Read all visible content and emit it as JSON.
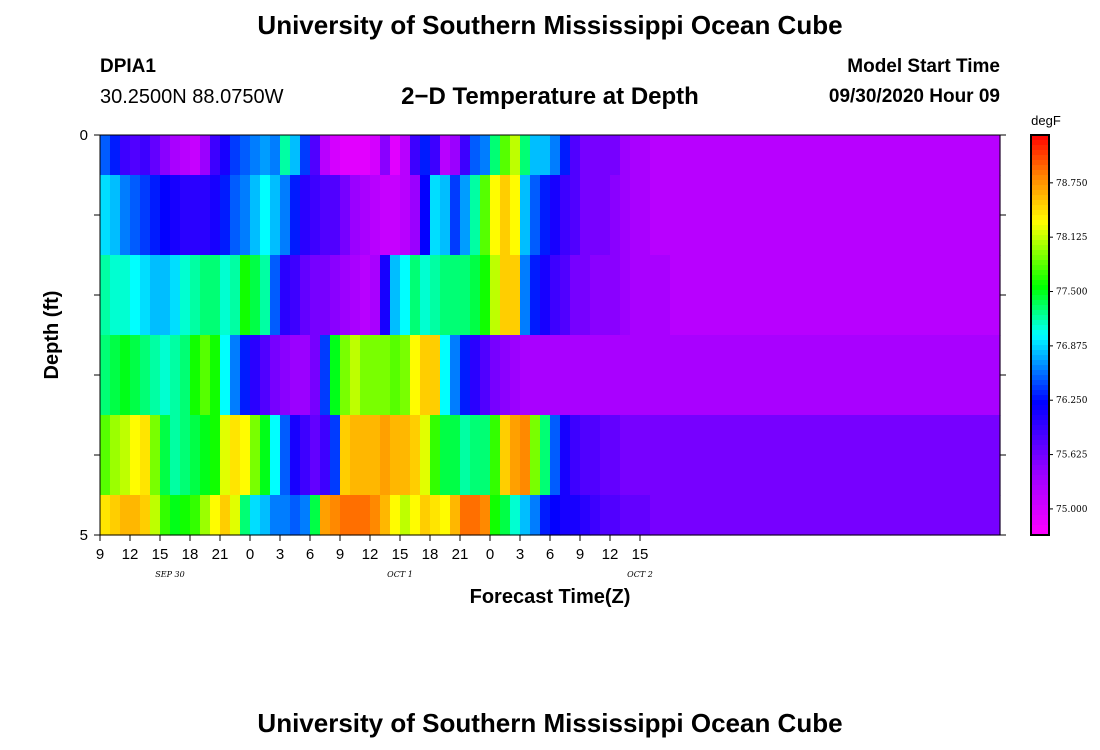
{
  "header": {
    "title": "University of Southern Mississippi Ocean Cube",
    "station_id": "DPIA1",
    "station_coords": "30.2500N 88.0750W",
    "plot_title": "2−D Temperature at Depth",
    "model_start_label": "Model Start Time",
    "model_start_value": "09/30/2020 Hour 09"
  },
  "footer": {
    "title": "University of Southern Mississippi Ocean Cube"
  },
  "chart_data": {
    "type": "heatmap",
    "xlabel": "Forecast Time(Z)",
    "ylabel": "Depth (ft)",
    "x_start_hour": 9,
    "x_step_hours": 1,
    "x_tick_labels": [
      "9",
      "12",
      "15",
      "18",
      "21",
      "0",
      "3",
      "6",
      "9",
      "12",
      "15",
      "18",
      "21",
      "0",
      "3",
      "6",
      "9",
      "12",
      "15"
    ],
    "date_labels": [
      {
        "label": "SEP 30",
        "hour": 16
      },
      {
        "label": "OCT 1",
        "hour": 39
      },
      {
        "label": "OCT 2",
        "hour": 63
      }
    ],
    "y_tick_labels": [
      "0",
      "5"
    ],
    "ylim": [
      0,
      5
    ],
    "colorbar": {
      "unit": "degF",
      "min": 74.7,
      "max": 79.3,
      "ticks": [
        "75.000",
        "75.625",
        "76.250",
        "76.875",
        "77.500",
        "78.125",
        "78.750"
      ]
    },
    "layers": [
      {
        "depth": "0.0–0.5",
        "values": [
          76.5,
          76.3,
          75.9,
          75.8,
          75.9,
          75.7,
          75.5,
          75.3,
          75.2,
          75.1,
          75.4,
          75.9,
          76.1,
          76.4,
          76.5,
          76.6,
          76.7,
          76.6,
          77.2,
          76.8,
          76.4,
          75.8,
          75.2,
          75.0,
          74.9,
          74.9,
          74.9,
          75.0,
          75.5,
          74.9,
          75.2,
          75.9,
          76.3,
          75.9,
          75.2,
          75.4,
          75.9,
          76.5,
          76.6,
          77.3,
          77.8,
          78.1,
          77.3,
          76.8,
          76.8,
          76.6,
          76.3,
          75.8,
          75.6,
          75.6,
          75.6,
          75.6,
          75.4,
          75.3,
          75.3,
          75.2,
          75.2,
          75.2,
          75.2,
          75.2,
          75.2,
          75.2,
          75.2,
          75.2,
          75.2,
          75.2,
          75.2,
          75.2,
          75.2,
          75.2,
          75.2,
          75.2,
          75.2,
          75.2,
          75.2,
          75.2,
          75.2,
          75.2,
          75.2,
          75.2,
          75.2,
          75.2,
          75.2,
          75.2,
          75.2,
          75.2,
          75.2,
          75.2,
          75.2,
          75.2
        ]
      },
      {
        "depth": "0.5–1.5",
        "values": [
          76.9,
          76.8,
          76.6,
          76.5,
          76.4,
          76.3,
          76.2,
          76.1,
          76.0,
          76.0,
          76.0,
          76.1,
          76.3,
          76.5,
          76.6,
          76.8,
          77.0,
          76.8,
          76.6,
          76.3,
          76.0,
          75.9,
          75.8,
          75.8,
          75.6,
          75.4,
          75.3,
          75.2,
          75.1,
          75.1,
          75.2,
          75.4,
          76.2,
          76.9,
          76.8,
          76.4,
          76.7,
          77.2,
          77.8,
          78.3,
          78.5,
          78.3,
          76.8,
          76.5,
          76.3,
          76.1,
          75.9,
          75.8,
          75.6,
          75.6,
          75.6,
          75.5,
          75.4,
          75.3,
          75.3,
          75.2,
          75.2,
          75.2,
          75.2,
          75.2,
          75.2,
          75.2,
          75.2,
          75.2,
          75.2,
          75.2,
          75.2,
          75.2,
          75.2,
          75.2,
          75.2,
          75.2,
          75.2,
          75.2,
          75.2,
          75.2,
          75.2,
          75.2,
          75.2,
          75.2,
          75.2,
          75.2,
          75.2,
          75.2,
          75.2,
          75.2,
          75.2,
          75.2,
          75.2,
          75.2
        ]
      },
      {
        "depth": "1.5–2.5",
        "values": [
          77.2,
          77.1,
          77.1,
          77.0,
          76.9,
          76.8,
          76.8,
          76.9,
          77.1,
          77.2,
          77.3,
          77.3,
          77.1,
          77.2,
          77.6,
          77.4,
          77.2,
          76.5,
          76.0,
          75.9,
          75.7,
          75.6,
          75.6,
          75.5,
          75.4,
          75.3,
          75.2,
          75.3,
          76.1,
          76.8,
          77.0,
          77.3,
          77.1,
          77.2,
          77.3,
          77.3,
          77.3,
          77.4,
          77.6,
          78.1,
          78.5,
          78.5,
          76.6,
          76.3,
          76.1,
          75.9,
          75.8,
          75.6,
          75.6,
          75.5,
          75.5,
          75.5,
          75.4,
          75.3,
          75.3,
          75.3,
          75.3,
          75.2,
          75.2,
          75.2,
          75.2,
          75.2,
          75.2,
          75.2,
          75.2,
          75.2,
          75.2,
          75.2,
          75.2,
          75.2,
          75.2,
          75.2,
          75.2,
          75.2,
          75.2,
          75.2,
          75.2,
          75.2,
          75.2,
          75.2,
          75.2,
          75.2,
          75.2,
          75.2,
          75.2,
          75.2,
          75.2,
          75.2,
          75.2,
          75.2
        ]
      },
      {
        "depth": "2.5–3.5",
        "values": [
          77.3,
          77.4,
          77.5,
          77.4,
          77.3,
          77.2,
          77.1,
          77.2,
          77.3,
          77.6,
          77.8,
          77.6,
          77.0,
          76.6,
          76.3,
          76.0,
          75.8,
          75.6,
          75.5,
          75.4,
          75.4,
          75.6,
          76.4,
          77.5,
          77.9,
          78.1,
          77.9,
          77.9,
          77.9,
          77.8,
          77.9,
          78.3,
          78.5,
          78.5,
          77.0,
          76.6,
          76.3,
          76.0,
          75.8,
          75.6,
          75.5,
          75.4,
          75.3,
          75.3,
          75.3,
          75.3,
          75.3,
          75.3,
          75.3,
          75.3,
          75.3,
          75.3,
          75.3,
          75.3,
          75.3,
          75.3,
          75.3,
          75.3,
          75.3,
          75.3,
          75.3,
          75.3,
          75.3,
          75.3,
          75.3,
          75.3,
          75.3,
          75.3,
          75.3,
          75.3,
          75.3,
          75.3,
          75.3,
          75.3,
          75.3,
          75.3,
          75.3,
          75.3,
          75.3,
          75.3,
          75.3,
          75.3,
          75.3,
          75.3,
          75.3,
          75.3,
          75.3,
          75.3,
          75.3,
          75.3
        ]
      },
      {
        "depth": "3.5–4.5",
        "values": [
          77.8,
          78.0,
          78.1,
          78.3,
          78.4,
          77.9,
          77.4,
          77.2,
          77.3,
          77.4,
          77.5,
          77.6,
          78.2,
          78.4,
          78.3,
          77.9,
          77.5,
          77.0,
          76.5,
          76.1,
          75.9,
          75.7,
          75.9,
          76.4,
          78.5,
          78.6,
          78.6,
          78.6,
          78.7,
          78.6,
          78.6,
          78.5,
          78.2,
          77.7,
          77.4,
          77.4,
          77.2,
          77.3,
          77.3,
          77.7,
          78.5,
          78.7,
          78.8,
          77.9,
          77.3,
          76.5,
          76.1,
          75.9,
          75.8,
          75.8,
          75.7,
          75.7,
          75.6,
          75.6,
          75.6,
          75.6,
          75.6,
          75.6,
          75.6,
          75.6,
          75.6,
          75.6,
          75.6,
          75.6,
          75.6,
          75.6,
          75.6,
          75.6,
          75.6,
          75.6,
          75.6,
          75.6,
          75.6,
          75.6,
          75.6,
          75.6,
          75.6,
          75.6,
          75.6,
          75.6,
          75.6,
          75.6,
          75.6,
          75.6,
          75.6,
          75.6,
          75.6,
          75.6,
          75.6,
          75.6
        ]
      },
      {
        "depth": "4.5–5.0",
        "values": [
          78.4,
          78.5,
          78.6,
          78.6,
          78.5,
          78.1,
          77.7,
          77.5,
          77.6,
          77.7,
          78.0,
          78.3,
          78.5,
          78.2,
          77.3,
          76.9,
          76.8,
          76.6,
          76.6,
          76.5,
          76.6,
          77.4,
          78.7,
          78.8,
          78.9,
          78.9,
          78.9,
          78.8,
          78.6,
          78.3,
          78.1,
          78.3,
          78.5,
          78.4,
          78.3,
          78.6,
          78.9,
          78.9,
          78.8,
          77.6,
          77.4,
          77.1,
          76.8,
          76.6,
          76.3,
          76.2,
          76.1,
          76.1,
          76.0,
          75.9,
          75.8,
          75.8,
          75.7,
          75.7,
          75.7,
          75.6,
          75.6,
          75.6,
          75.6,
          75.6,
          75.6,
          75.6,
          75.6,
          75.6,
          75.6,
          75.6,
          75.6,
          75.6,
          75.6,
          75.6,
          75.6,
          75.6,
          75.6,
          75.6,
          75.6,
          75.6,
          75.6,
          75.6,
          75.6,
          75.6,
          75.6,
          75.6,
          75.6,
          75.6,
          75.6,
          75.6,
          75.6,
          75.6,
          75.6,
          75.6
        ]
      }
    ]
  }
}
